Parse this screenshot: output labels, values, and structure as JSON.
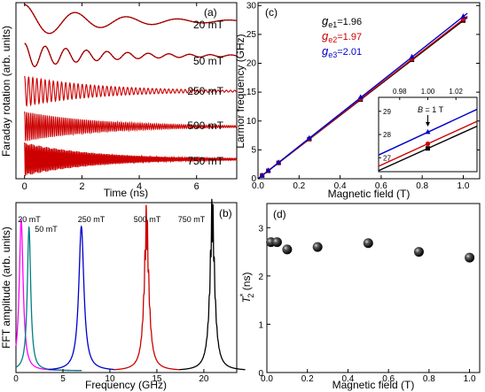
{
  "chart_data": [
    {
      "panel": "(a)",
      "type": "line",
      "xlabel": "Time (ns)",
      "ylabel": "Faraday rotation (arb. units)",
      "xlim": [
        -0.3,
        7.4
      ],
      "xticks": [
        "0",
        "2",
        "4",
        "6"
      ],
      "xtick_values": [
        0,
        2,
        4,
        6
      ],
      "series": [
        {
          "label": "20 mT",
          "freq_ghz": 0.56,
          "t2_ns": 2.7,
          "color": "#cc0000",
          "fit_color": "#000000"
        },
        {
          "label": "50 mT",
          "freq_ghz": 1.39,
          "t2_ns": 2.7,
          "color": "#cc0000",
          "fit_color": "#000000"
        },
        {
          "label": "250 mT",
          "freq_ghz": 6.96,
          "t2_ns": 2.6,
          "color": "#cc0000",
          "fit_color": "#000000"
        },
        {
          "label": "500 mT",
          "freq_ghz": 13.9,
          "t2_ns": 2.7,
          "color": "#cc0000",
          "fit_color": "#000000"
        },
        {
          "label": "750 mT",
          "freq_ghz": 20.9,
          "t2_ns": 2.5,
          "color": "#cc0000",
          "fit_color": "#000000"
        }
      ]
    },
    {
      "panel": "(b)",
      "type": "line",
      "xlabel": "Frequency (GHz)",
      "ylabel": "FFT amplitude (arb. units)",
      "xlim": [
        0,
        23.5
      ],
      "xticks": [
        "0",
        "5",
        "10",
        "15",
        "20"
      ],
      "xtick_values": [
        0,
        5,
        10,
        15,
        20
      ],
      "series": [
        {
          "label": "20 mT",
          "center_ghz": 0.56,
          "color": "#ff00ff"
        },
        {
          "label": "50 mT",
          "center_ghz": 1.39,
          "color": "#008080"
        },
        {
          "label": "250 mT",
          "center_ghz": 6.96,
          "color": "#0000cc"
        },
        {
          "label": "500 mT",
          "center_ghz": 13.9,
          "color": "#cc0000"
        },
        {
          "label": "750 mT",
          "center_ghz": 20.9,
          "color": "#000000"
        }
      ]
    },
    {
      "panel": "(c)",
      "type": "line",
      "xlabel": "Magnetic field (T)",
      "ylabel": "Larmor frequency (GHz)",
      "xlim": [
        0,
        1.08
      ],
      "ylim": [
        0,
        30.5
      ],
      "xticks": [
        "0.0",
        "0.2",
        "0.4",
        "0.6",
        "0.8",
        "1.0"
      ],
      "xtick_values": [
        0,
        0.2,
        0.4,
        0.6,
        0.8,
        1.0
      ],
      "yticks": [
        "0",
        "5",
        "10",
        "15",
        "20",
        "25",
        "30"
      ],
      "ytick_values": [
        0,
        5,
        10,
        15,
        20,
        25,
        30
      ],
      "legend": [
        {
          "symbol": "g",
          "sub": "e1",
          "value": "=1.96",
          "color": "#000000"
        },
        {
          "symbol": "g",
          "sub": "e2",
          "value": "=1.97",
          "color": "#cc0000"
        },
        {
          "symbol": "g",
          "sub": "e3",
          "value": "=2.01",
          "color": "#0000cc"
        }
      ],
      "series": [
        {
          "g": 1.96,
          "color": "#000000",
          "x": [
            0.02,
            0.05,
            0.1,
            0.25,
            0.5,
            0.75,
            1.0
          ],
          "y": [
            0.55,
            1.37,
            2.74,
            6.86,
            13.7,
            20.6,
            27.4
          ]
        },
        {
          "g": 1.97,
          "color": "#cc0000",
          "x": [
            0.02,
            0.05,
            0.1,
            0.25,
            0.5,
            0.75,
            1.0
          ],
          "y": [
            0.55,
            1.38,
            2.76,
            6.89,
            13.8,
            20.7,
            27.6
          ]
        },
        {
          "g": 2.01,
          "color": "#0000cc",
          "x": [
            0.02,
            0.05,
            0.1,
            0.25,
            0.5,
            0.75,
            1.0
          ],
          "y": [
            0.56,
            1.41,
            2.81,
            7.03,
            14.1,
            21.1,
            28.1
          ]
        }
      ],
      "inset": {
        "xlim": [
          0.965,
          1.035
        ],
        "ylim": [
          26.4,
          29.6
        ],
        "xticks": [
          "0.98",
          "1.00",
          "1.02"
        ],
        "xtick_values": [
          0.98,
          1.0,
          1.02
        ],
        "yticks": [
          "27",
          "28",
          "29"
        ],
        "ytick_values": [
          27,
          28,
          29
        ],
        "annotation_symbol": "B",
        "annotation_value": " = 1 T"
      }
    },
    {
      "panel": "(d)",
      "type": "scatter",
      "xlabel": "Magnetic field (T)",
      "ylabel_main": "T",
      "ylabel_sub": "2",
      "ylabel_sup": "*",
      "ylabel_units": " (ns)",
      "xlim": [
        0,
        1.05
      ],
      "ylim": [
        0,
        3.5
      ],
      "xticks": [
        "0.0",
        "0.2",
        "0.4",
        "0.6",
        "0.8",
        "1.0"
      ],
      "xtick_values": [
        0,
        0.2,
        0.4,
        0.6,
        0.8,
        1.0
      ],
      "yticks": [
        "0",
        "1",
        "2",
        "3"
      ],
      "ytick_values": [
        0,
        1,
        2,
        3
      ],
      "x": [
        0.02,
        0.05,
        0.1,
        0.25,
        0.5,
        0.75,
        1.0
      ],
      "y": [
        2.7,
        2.7,
        2.55,
        2.6,
        2.68,
        2.5,
        2.38
      ]
    }
  ]
}
